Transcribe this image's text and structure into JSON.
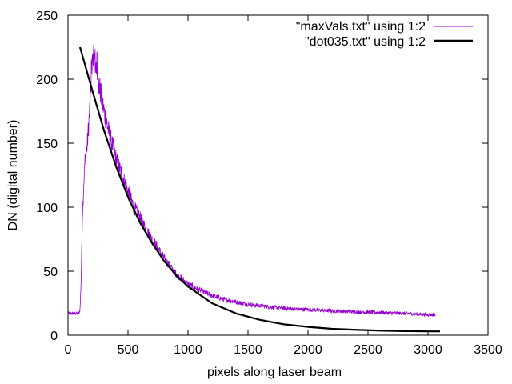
{
  "chart_data": {
    "type": "line",
    "title": "",
    "xlabel": "pixels along laser beam",
    "ylabel": "DN (digital number)",
    "xlim": [
      0,
      3500
    ],
    "ylim": [
      0,
      250
    ],
    "xticks": [
      0,
      500,
      1000,
      1500,
      2000,
      2500,
      3000,
      3500
    ],
    "yticks": [
      0,
      50,
      100,
      150,
      200,
      250
    ],
    "grid": false,
    "legend_position": "top-right",
    "series": [
      {
        "name": "\"maxVals.txt\" using 1:2",
        "color": "#9400d3",
        "style": "noisy-line",
        "x": [
          0,
          90,
          100,
          110,
          120,
          140,
          160,
          180,
          200,
          220,
          250,
          300,
          350,
          400,
          450,
          500,
          550,
          600,
          650,
          700,
          750,
          800,
          900,
          1000,
          1100,
          1200,
          1300,
          1400,
          1500,
          1600,
          1800,
          2000,
          2200,
          2500,
          2800,
          3000,
          3060
        ],
        "y": [
          17,
          17,
          20,
          45,
          95,
          135,
          148,
          175,
          210,
          218,
          200,
          175,
          155,
          138,
          125,
          112,
          100,
          92,
          83,
          75,
          68,
          60,
          48,
          40,
          35,
          31,
          28,
          26,
          24,
          23,
          21,
          20,
          19,
          18,
          17,
          16,
          16
        ]
      },
      {
        "name": "\"dot035.txt\" using 1:2",
        "color": "#000000",
        "style": "thick-line",
        "x": [
          100,
          200,
          300,
          400,
          500,
          600,
          700,
          800,
          900,
          1000,
          1200,
          1400,
          1600,
          1800,
          2000,
          2200,
          2400,
          2600,
          2800,
          3000,
          3100
        ],
        "y": [
          225,
          192,
          160,
          132,
          108,
          88,
          72,
          58,
          47,
          38,
          25,
          17,
          12,
          8.5,
          6.5,
          5,
          4.2,
          3.6,
          3.2,
          3,
          3
        ]
      }
    ]
  }
}
